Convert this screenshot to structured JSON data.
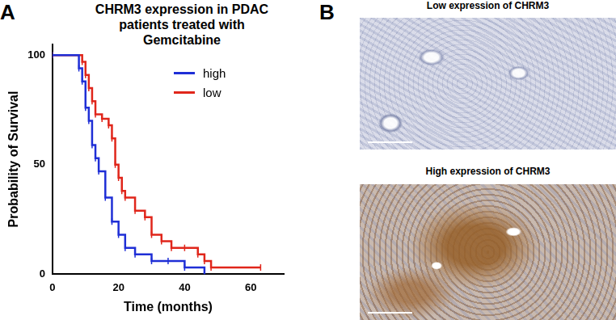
{
  "panel_labels": [
    "A",
    "B"
  ],
  "chart_data": {
    "type": "line",
    "title": "CHRM3 expression in PDAC patients treated with Gemcitabine",
    "x_label": "Time (months)",
    "y_label": "Probability of Survival",
    "xlim": [
      0,
      70
    ],
    "xticks": [
      0,
      20,
      40,
      60
    ],
    "ylim": [
      0,
      105
    ],
    "yticks": [
      0,
      50,
      100
    ],
    "grid": false,
    "legend": "upper right",
    "line_style": "stepped",
    "marker": "tick",
    "series": [
      {
        "name": "high",
        "color": "#1f2fd6",
        "x": [
          0,
          8,
          9,
          10,
          11,
          12,
          13,
          14,
          16,
          18,
          20,
          22,
          25,
          30,
          35,
          40,
          46
        ],
        "values": [
          100,
          94,
          88,
          76,
          70,
          59,
          53,
          47,
          35,
          24,
          18,
          12,
          9,
          6,
          6,
          3,
          0
        ]
      },
      {
        "name": "low",
        "color": "#e0261b",
        "x": [
          0,
          9,
          10,
          11,
          12,
          13,
          15,
          17,
          18,
          19,
          20,
          21,
          22,
          25,
          28,
          30,
          33,
          36,
          40,
          44,
          46,
          48,
          63
        ],
        "values": [
          100,
          97,
          91,
          85,
          79,
          73,
          71,
          68,
          62,
          50,
          44,
          38,
          35,
          29,
          26,
          18,
          15,
          12,
          12,
          9,
          6,
          3,
          3
        ]
      }
    ]
  },
  "images": [
    {
      "caption": "Low expression of CHRM3",
      "expression": "low"
    },
    {
      "caption": "High expression of CHRM3",
      "expression": "high"
    }
  ]
}
